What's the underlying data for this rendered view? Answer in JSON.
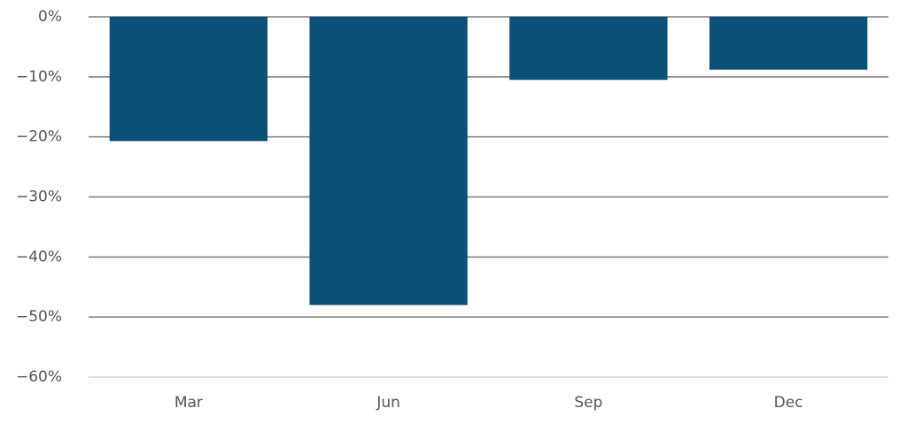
{
  "chart_data": {
    "type": "bar",
    "categories": [
      "Mar",
      "Jun",
      "Sep",
      "Dec"
    ],
    "values": [
      -20.7,
      -48,
      -10.5,
      -8.8
    ],
    "color": "#0a5077",
    "ylim": [
      -60,
      0
    ],
    "yticks": [
      {
        "value": -60,
        "label": "−60%"
      },
      {
        "value": -50,
        "label": "−50%"
      },
      {
        "value": -40,
        "label": "−40%"
      },
      {
        "value": -30,
        "label": "−30%"
      },
      {
        "value": -20,
        "label": "−20%"
      },
      {
        "value": -10,
        "label": "−10%"
      },
      {
        "value": 0,
        "label": "0%"
      }
    ],
    "grid": true
  }
}
